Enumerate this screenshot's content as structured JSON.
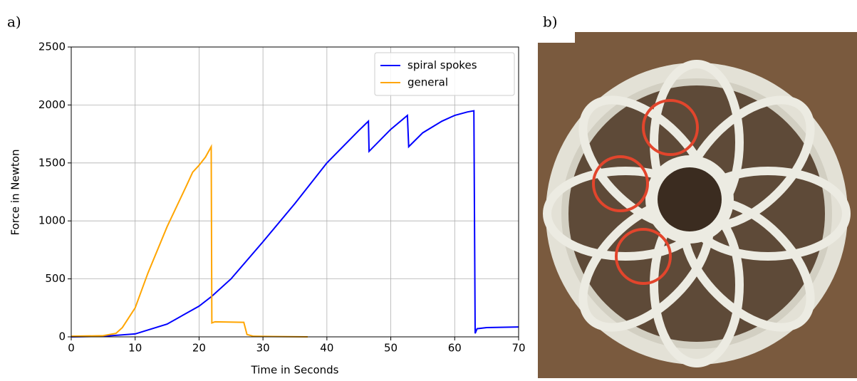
{
  "chart_data": {
    "type": "line",
    "panel_label": "a)",
    "xlabel": "Time in Seconds",
    "ylabel": "Force in Newton",
    "xlim": [
      0,
      70
    ],
    "ylim": [
      0,
      2500
    ],
    "xticks": [
      0,
      10,
      20,
      30,
      40,
      50,
      60,
      70
    ],
    "yticks": [
      0,
      500,
      1000,
      1500,
      2000,
      2500
    ],
    "grid": true,
    "legend": "upper right",
    "series": [
      {
        "name": "spiral spokes",
        "color": "#0000ff",
        "x": [
          0,
          5,
          10,
          15,
          20,
          22,
          25,
          30,
          35,
          40,
          45,
          46.5,
          46.6,
          50,
          52.6,
          52.8,
          55,
          58,
          60,
          62,
          63,
          63.2,
          63.5,
          65,
          70
        ],
        "values": [
          0,
          5,
          25,
          110,
          265,
          350,
          500,
          820,
          1150,
          1500,
          1780,
          1860,
          1600,
          1790,
          1910,
          1640,
          1760,
          1860,
          1910,
          1940,
          1950,
          30,
          70,
          80,
          85
        ]
      },
      {
        "name": "general",
        "color": "#ffa500",
        "x": [
          0,
          5,
          7,
          8,
          10,
          12,
          15,
          18,
          19,
          20,
          21,
          21.9,
          22,
          22.5,
          27,
          27.5,
          28.5,
          37
        ],
        "values": [
          5,
          10,
          30,
          80,
          250,
          550,
          950,
          1300,
          1420,
          1480,
          1550,
          1640,
          120,
          130,
          125,
          20,
          5,
          0
        ]
      }
    ]
  },
  "photo": {
    "panel_label": "b)"
  }
}
